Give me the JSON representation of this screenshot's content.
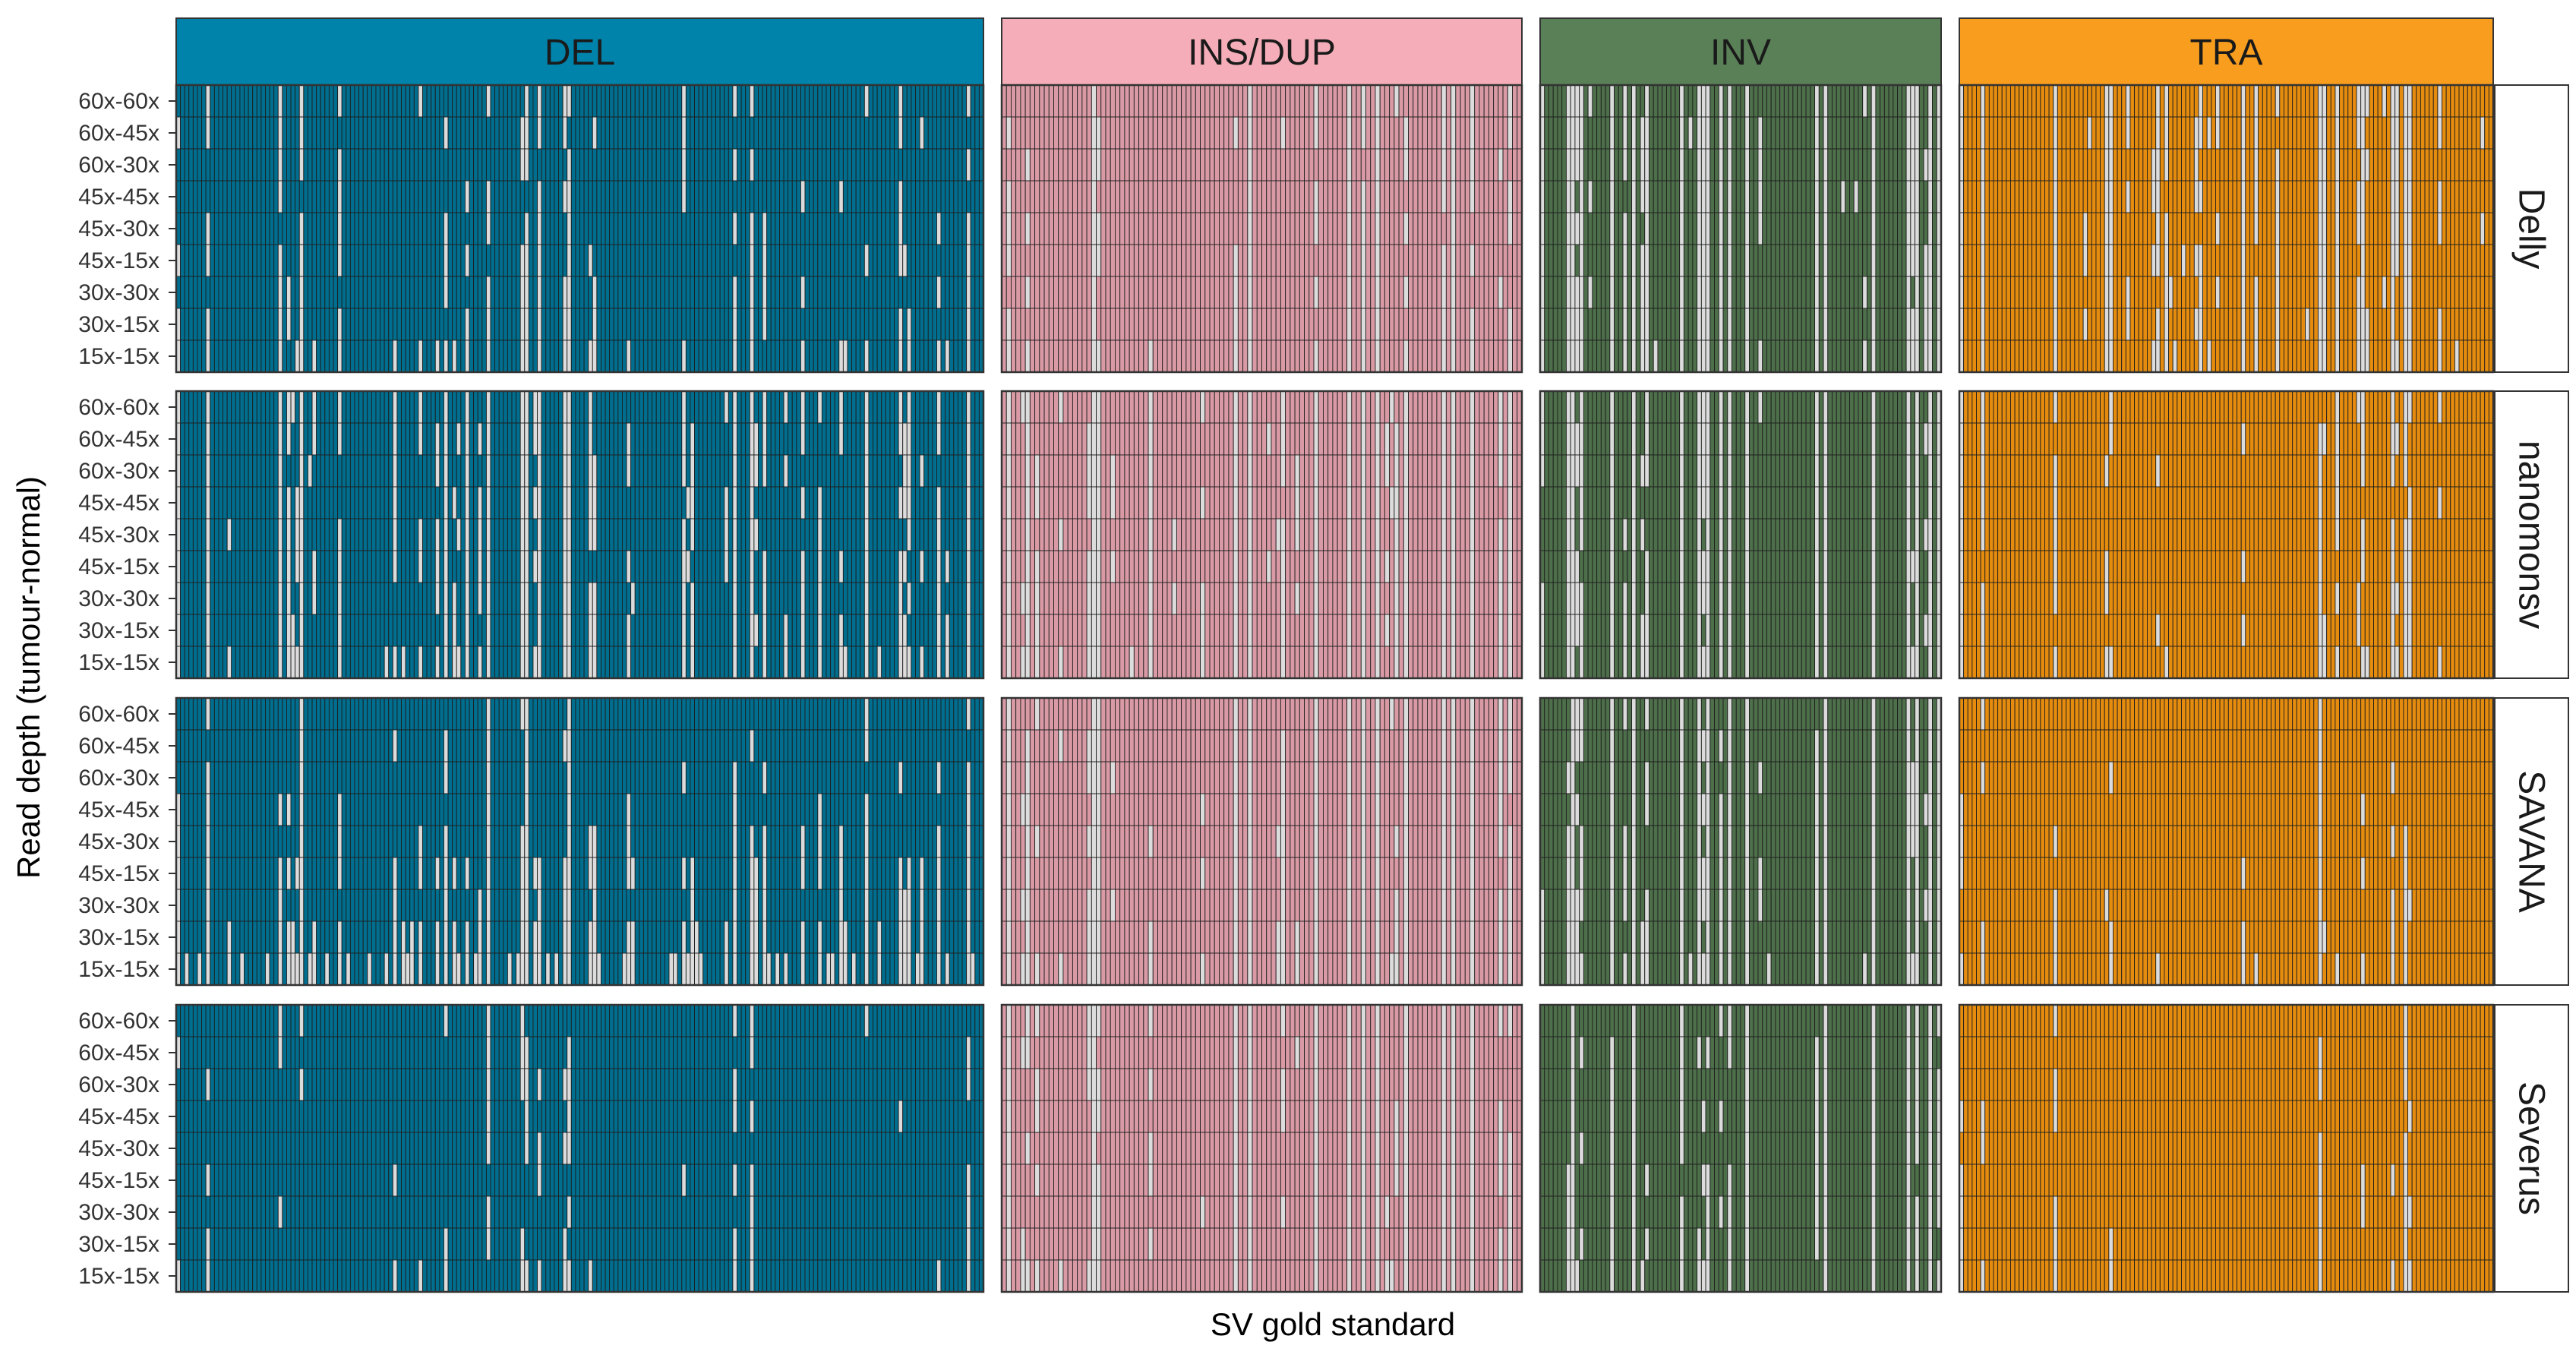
{
  "chart_data": {
    "type": "heatmap",
    "title": "",
    "xlabel": "SV gold standard",
    "ylabel": "Read depth (tumour-normal)",
    "x_tick_labels": [],
    "y_tick_labels": [
      "60x-60x",
      "60x-45x",
      "60x-30x",
      "45x-45x",
      "45x-30x",
      "45x-15x",
      "30x-30x",
      "30x-15x",
      "15x-15x"
    ],
    "column_facets": [
      {
        "label": "DEL",
        "color": "#0083AB",
        "detected_color": "#006E8F",
        "n_svs": 190
      },
      {
        "label": "INS/DUP",
        "color": "#F5AEB9",
        "detected_color": "#D99AA5",
        "n_svs": 110
      },
      {
        "label": "INV",
        "color": "#5A8057",
        "detected_color": "#4D6F4A",
        "n_svs": 92
      },
      {
        "label": "TRA",
        "color": "#F99D1E",
        "detected_color": "#E58C0E",
        "n_svs": 125
      }
    ],
    "row_facets": [
      "Delly",
      "nanomonsv",
      "SAVANA",
      "Severus"
    ],
    "cell_states": {
      "detected": 1,
      "not_detected": 0
    },
    "missed_color": "#DCDCDC",
    "grid": true,
    "detection_rate": {
      "Delly": {
        "DEL": [
          0.87,
          0.87,
          0.87,
          0.87,
          0.87,
          0.87,
          0.86,
          0.85,
          0.8
        ],
        "INS/DUP": [
          0.8,
          0.8,
          0.8,
          0.8,
          0.8,
          0.8,
          0.79,
          0.79,
          0.76
        ],
        "INV": [
          0.65,
          0.65,
          0.65,
          0.65,
          0.65,
          0.65,
          0.64,
          0.64,
          0.62
        ],
        "TRA": [
          0.75,
          0.75,
          0.75,
          0.75,
          0.75,
          0.75,
          0.74,
          0.74,
          0.72
        ]
      },
      "nanomonsv": {
        "DEL": [
          0.8,
          0.8,
          0.8,
          0.8,
          0.8,
          0.8,
          0.79,
          0.78,
          0.74
        ],
        "INS/DUP": [
          0.7,
          0.7,
          0.7,
          0.7,
          0.7,
          0.7,
          0.69,
          0.69,
          0.66
        ],
        "INV": [
          0.7,
          0.7,
          0.7,
          0.7,
          0.7,
          0.7,
          0.69,
          0.68,
          0.66
        ],
        "TRA": [
          0.85,
          0.85,
          0.85,
          0.85,
          0.85,
          0.85,
          0.84,
          0.83,
          0.8
        ]
      },
      "SAVANA": {
        "DEL": [
          0.9,
          0.89,
          0.88,
          0.87,
          0.84,
          0.78,
          0.83,
          0.74,
          0.6
        ],
        "INS/DUP": [
          0.73,
          0.73,
          0.73,
          0.73,
          0.73,
          0.72,
          0.72,
          0.71,
          0.68
        ],
        "INV": [
          0.73,
          0.73,
          0.72,
          0.72,
          0.71,
          0.7,
          0.7,
          0.69,
          0.65
        ],
        "TRA": [
          0.9,
          0.9,
          0.9,
          0.89,
          0.89,
          0.88,
          0.88,
          0.87,
          0.84
        ]
      },
      "Severus": {
        "DEL": [
          0.92,
          0.92,
          0.92,
          0.92,
          0.92,
          0.91,
          0.91,
          0.9,
          0.86
        ],
        "INS/DUP": [
          0.75,
          0.75,
          0.75,
          0.75,
          0.75,
          0.75,
          0.74,
          0.74,
          0.72
        ],
        "INV": [
          0.78,
          0.78,
          0.78,
          0.78,
          0.78,
          0.78,
          0.77,
          0.77,
          0.75
        ],
        "TRA": [
          0.9,
          0.9,
          0.9,
          0.9,
          0.9,
          0.9,
          0.89,
          0.89,
          0.87
        ]
      }
    }
  }
}
